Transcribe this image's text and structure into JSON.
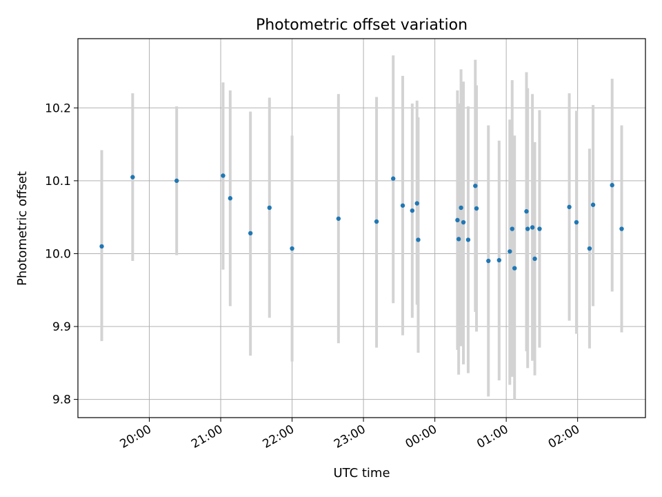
{
  "chart_data": {
    "type": "scatter",
    "title": "Photometric offset variation",
    "xlabel": "UTC time",
    "ylabel": "Photometric offset",
    "xlim": [
      "19:00",
      "02:57"
    ],
    "ylim": [
      9.775,
      10.295
    ],
    "grid": true,
    "x_ticks": [
      "20:00",
      "21:00",
      "22:00",
      "23:00",
      "00:00",
      "01:00",
      "02:00"
    ],
    "y_ticks": [
      "9.8",
      "9.9",
      "10.0",
      "10.1",
      "10.2"
    ],
    "colors": {
      "points": "#1f77b4",
      "errorbars": "#d3d3d3",
      "grid": "#b0b0b0"
    },
    "points": [
      {
        "x": "19:20",
        "y": 10.01,
        "ylow": 9.88,
        "yhigh": 10.142
      },
      {
        "x": "19:46",
        "y": 10.105,
        "ylow": 9.99,
        "yhigh": 10.22
      },
      {
        "x": "20:23",
        "y": 10.1,
        "ylow": 9.998,
        "yhigh": 10.202
      },
      {
        "x": "21:02",
        "y": 10.107,
        "ylow": 9.978,
        "yhigh": 10.235
      },
      {
        "x": "21:08",
        "y": 10.076,
        "ylow": 9.928,
        "yhigh": 10.224
      },
      {
        "x": "21:25",
        "y": 10.028,
        "ylow": 9.86,
        "yhigh": 10.195
      },
      {
        "x": "21:41",
        "y": 10.063,
        "ylow": 9.912,
        "yhigh": 10.214
      },
      {
        "x": "22:00",
        "y": 10.007,
        "ylow": 9.852,
        "yhigh": 10.162
      },
      {
        "x": "22:39",
        "y": 10.048,
        "ylow": 9.877,
        "yhigh": 10.219
      },
      {
        "x": "23:11",
        "y": 10.044,
        "ylow": 9.871,
        "yhigh": 10.215
      },
      {
        "x": "23:25",
        "y": 10.103,
        "ylow": 9.932,
        "yhigh": 10.272
      },
      {
        "x": "23:33",
        "y": 10.066,
        "ylow": 9.888,
        "yhigh": 10.244
      },
      {
        "x": "23:41",
        "y": 10.059,
        "ylow": 9.912,
        "yhigh": 10.206
      },
      {
        "x": "23:45",
        "y": 10.069,
        "ylow": 9.93,
        "yhigh": 10.21
      },
      {
        "x": "23:46",
        "y": 10.019,
        "ylow": 9.864,
        "yhigh": 10.187
      },
      {
        "x": "00:19",
        "y": 10.046,
        "ylow": 9.868,
        "yhigh": 10.224
      },
      {
        "x": "00:20",
        "y": 10.02,
        "ylow": 9.834,
        "yhigh": 10.206
      },
      {
        "x": "00:22",
        "y": 10.063,
        "ylow": 9.873,
        "yhigh": 10.253
      },
      {
        "x": "00:24",
        "y": 10.043,
        "ylow": 9.848,
        "yhigh": 10.236
      },
      {
        "x": "00:28",
        "y": 10.019,
        "ylow": 9.836,
        "yhigh": 10.202
      },
      {
        "x": "00:34",
        "y": 10.093,
        "ylow": 9.92,
        "yhigh": 10.266
      },
      {
        "x": "00:35",
        "y": 10.062,
        "ylow": 9.893,
        "yhigh": 10.231
      },
      {
        "x": "00:45",
        "y": 9.99,
        "ylow": 9.804,
        "yhigh": 10.176
      },
      {
        "x": "00:54",
        "y": 9.991,
        "ylow": 9.826,
        "yhigh": 10.155
      },
      {
        "x": "01:03",
        "y": 10.003,
        "ylow": 9.82,
        "yhigh": 10.184
      },
      {
        "x": "01:05",
        "y": 10.034,
        "ylow": 9.831,
        "yhigh": 10.238
      },
      {
        "x": "01:07",
        "y": 9.98,
        "ylow": 9.8,
        "yhigh": 10.162
      },
      {
        "x": "01:17",
        "y": 10.058,
        "ylow": 9.866,
        "yhigh": 10.249
      },
      {
        "x": "01:18",
        "y": 10.034,
        "ylow": 9.843,
        "yhigh": 10.227
      },
      {
        "x": "01:22",
        "y": 10.036,
        "ylow": 9.853,
        "yhigh": 10.219
      },
      {
        "x": "01:24",
        "y": 9.993,
        "ylow": 9.833,
        "yhigh": 10.153
      },
      {
        "x": "01:28",
        "y": 10.034,
        "ylow": 9.871,
        "yhigh": 10.197
      },
      {
        "x": "01:53",
        "y": 10.064,
        "ylow": 9.908,
        "yhigh": 10.22
      },
      {
        "x": "01:59",
        "y": 10.043,
        "ylow": 9.89,
        "yhigh": 10.196
      },
      {
        "x": "02:10",
        "y": 10.007,
        "ylow": 9.87,
        "yhigh": 10.144
      },
      {
        "x": "02:13",
        "y": 10.067,
        "ylow": 9.928,
        "yhigh": 10.204
      },
      {
        "x": "02:29",
        "y": 10.094,
        "ylow": 9.948,
        "yhigh": 10.24
      },
      {
        "x": "02:37",
        "y": 10.034,
        "ylow": 9.892,
        "yhigh": 10.176
      }
    ]
  }
}
